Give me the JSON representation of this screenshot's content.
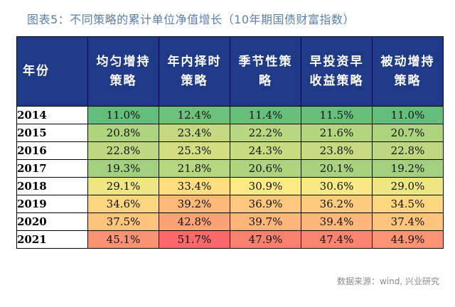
{
  "title": "图表5：不同策略的累计单位净值增长（10年期国债财富指数）",
  "table": {
    "year_header": "年份",
    "columns": [
      "均匀增持\n策略",
      "年内择时\n策略",
      "季节性策\n略",
      "早投资早\n收益策略",
      "被动增持\n策略"
    ],
    "rows": [
      {
        "year": "2014",
        "values": [
          "11.0%",
          "12.4%",
          "11.4%",
          "11.5%",
          "11.0%"
        ]
      },
      {
        "year": "2015",
        "values": [
          "20.8%",
          "23.4%",
          "22.2%",
          "21.6%",
          "20.7%"
        ]
      },
      {
        "year": "2016",
        "values": [
          "22.8%",
          "25.3%",
          "24.3%",
          "23.8%",
          "22.8%"
        ]
      },
      {
        "year": "2017",
        "values": [
          "19.3%",
          "21.8%",
          "20.6%",
          "20.1%",
          "19.2%"
        ]
      },
      {
        "year": "2018",
        "values": [
          "29.1%",
          "33.4%",
          "30.9%",
          "30.6%",
          "29.0%"
        ]
      },
      {
        "year": "2019",
        "values": [
          "34.6%",
          "39.2%",
          "36.9%",
          "36.2%",
          "34.5%"
        ]
      },
      {
        "year": "2020",
        "values": [
          "37.5%",
          "42.8%",
          "39.7%",
          "39.4%",
          "37.4%"
        ]
      },
      {
        "year": "2021",
        "values": [
          "45.1%",
          "51.7%",
          "47.9%",
          "47.4%",
          "44.9%"
        ]
      }
    ]
  },
  "source": "数据来源：wind, 兴业研究",
  "colors": {
    "header_bg": "#1f3a86",
    "heat_low": "#63be7b",
    "heat_mid": "#ffeb84",
    "heat_high": "#f8696b",
    "title": "#5b7fa8"
  }
}
